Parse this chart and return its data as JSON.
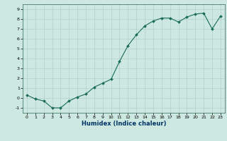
{
  "x": [
    0,
    1,
    2,
    3,
    4,
    5,
    6,
    7,
    8,
    9,
    10,
    11,
    12,
    13,
    14,
    15,
    16,
    17,
    18,
    19,
    20,
    21,
    22,
    23
  ],
  "y": [
    0.3,
    -0.1,
    -0.3,
    -1.0,
    -1.0,
    -0.3,
    0.1,
    0.4,
    1.1,
    1.5,
    1.9,
    3.7,
    5.3,
    6.4,
    7.3,
    7.8,
    8.1,
    8.1,
    7.7,
    8.2,
    8.5,
    8.6,
    7.0,
    8.3
  ],
  "xlabel": "Humidex (Indice chaleur)",
  "xlim": [
    -0.5,
    23.5
  ],
  "ylim": [
    -1.5,
    9.5
  ],
  "yticks": [
    -1,
    0,
    1,
    2,
    3,
    4,
    5,
    6,
    7,
    8,
    9
  ],
  "xticks": [
    0,
    1,
    2,
    3,
    4,
    5,
    6,
    7,
    8,
    9,
    10,
    11,
    12,
    13,
    14,
    15,
    16,
    17,
    18,
    19,
    20,
    21,
    22,
    23
  ],
  "line_color": "#1a6b5a",
  "marker_color": "#1a6b5a",
  "bg_color": "#cce8e0",
  "grid_color": "#b0d0cc",
  "axis_color": "#336655",
  "label_color": "#003366",
  "tick_color": "#000000"
}
